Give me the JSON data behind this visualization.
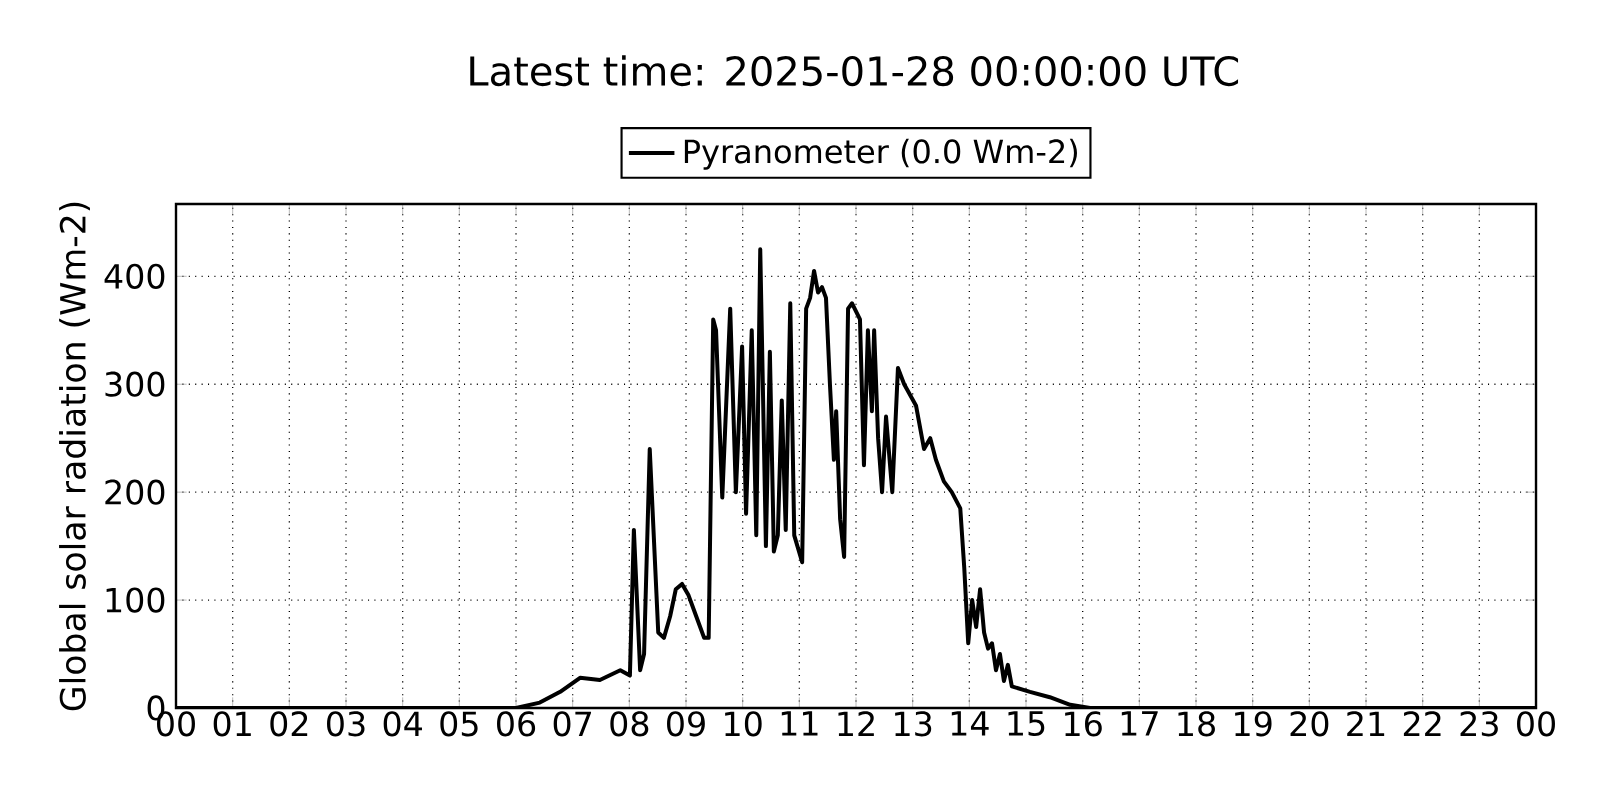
{
  "chart_data": {
    "type": "line",
    "title": "Latest time: 2025-01-28 00:00:00 UTC",
    "ylabel": "Global solar radiation (Wm-2)",
    "x": [
      0,
      6.0,
      6.42,
      6.78,
      7.13,
      7.48,
      7.84,
      8.01,
      8.08,
      8.19,
      8.26,
      8.36,
      8.51,
      8.61,
      8.72,
      8.82,
      8.93,
      9.04,
      9.18,
      9.32,
      9.4,
      9.48,
      9.53,
      9.64,
      9.78,
      9.88,
      9.99,
      10.06,
      10.16,
      10.24,
      10.31,
      10.41,
      10.48,
      10.55,
      10.62,
      10.69,
      10.76,
      10.84,
      10.91,
      11.05,
      11.12,
      11.19,
      11.26,
      11.33,
      11.4,
      11.47,
      11.54,
      11.61,
      11.65,
      11.72,
      11.79,
      11.86,
      11.93,
      12.07,
      12.14,
      12.21,
      12.28,
      12.32,
      12.39,
      12.46,
      12.53,
      12.64,
      12.74,
      12.85,
      13.06,
      13.2,
      13.31,
      13.41,
      13.55,
      13.69,
      13.84,
      13.91,
      13.98,
      14.05,
      14.12,
      14.19,
      14.26,
      14.33,
      14.4,
      14.47,
      14.54,
      14.61,
      14.68,
      14.75,
      15.07,
      15.42,
      15.78,
      16.13,
      24
    ],
    "series": [
      {
        "name": "Pyranometer (0.0 Wm-2)",
        "color": "#000000",
        "values": [
          0,
          0,
          5,
          15,
          28,
          26,
          35,
          30,
          165,
          35,
          50,
          240,
          70,
          65,
          85,
          110,
          115,
          105,
          85,
          65,
          65,
          360,
          350,
          195,
          370,
          200,
          335,
          180,
          350,
          160,
          425,
          150,
          330,
          145,
          160,
          285,
          165,
          375,
          160,
          135,
          370,
          380,
          405,
          385,
          390,
          380,
          300,
          230,
          275,
          175,
          140,
          370,
          375,
          360,
          225,
          350,
          275,
          350,
          250,
          200,
          270,
          200,
          315,
          300,
          280,
          240,
          250,
          230,
          210,
          200,
          185,
          130,
          60,
          100,
          75,
          110,
          70,
          55,
          60,
          35,
          50,
          25,
          40,
          20,
          15,
          10,
          3,
          0,
          0
        ]
      }
    ],
    "xlim": [
      0,
      24
    ],
    "xticks": [
      {
        "value": 0,
        "label": "00"
      },
      {
        "value": 1,
        "label": "01"
      },
      {
        "value": 2,
        "label": "02"
      },
      {
        "value": 3,
        "label": "03"
      },
      {
        "value": 4,
        "label": "04"
      },
      {
        "value": 5,
        "label": "05"
      },
      {
        "value": 6,
        "label": "06"
      },
      {
        "value": 7,
        "label": "07"
      },
      {
        "value": 8,
        "label": "08"
      },
      {
        "value": 9,
        "label": "09"
      },
      {
        "value": 10,
        "label": "10"
      },
      {
        "value": 11,
        "label": "11"
      },
      {
        "value": 12,
        "label": "12"
      },
      {
        "value": 13,
        "label": "13"
      },
      {
        "value": 14,
        "label": "14"
      },
      {
        "value": 15,
        "label": "15"
      },
      {
        "value": 16,
        "label": "16"
      },
      {
        "value": 17,
        "label": "17"
      },
      {
        "value": 18,
        "label": "18"
      },
      {
        "value": 19,
        "label": "19"
      },
      {
        "value": 20,
        "label": "20"
      },
      {
        "value": 21,
        "label": "21"
      },
      {
        "value": 22,
        "label": "22"
      },
      {
        "value": 23,
        "label": "23"
      },
      {
        "value": 24,
        "label": "00"
      }
    ],
    "ylim": [
      0,
      467
    ],
    "yticks": [
      0,
      100,
      200,
      300,
      400
    ],
    "grid": true,
    "legend": "top",
    "marker": "none",
    "line_style": "solid"
  }
}
